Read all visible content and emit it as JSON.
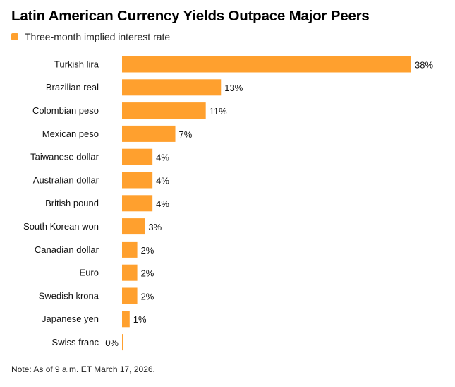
{
  "colors": {
    "bar": "#FFA02E"
  },
  "chart_data": {
    "type": "bar",
    "orientation": "horizontal",
    "title": "Latin American Currency Yields Outpace Major Peers",
    "legend": [
      "Three-month implied interest rate"
    ],
    "categories": [
      "Turkish lira",
      "Brazilian real",
      "Colombian peso",
      "Mexican peso",
      "Taiwanese dollar",
      "Australian dollar",
      "British pound",
      "South Korean won",
      "Canadian dollar",
      "Euro",
      "Swedish krona",
      "Japanese yen",
      "Swiss franc"
    ],
    "values": [
      38,
      13,
      11,
      7,
      4,
      4,
      4,
      3,
      2,
      2,
      2,
      1,
      0
    ],
    "value_labels": [
      "38%",
      "13%",
      "11%",
      "7%",
      "4%",
      "4%",
      "4%",
      "3%",
      "2%",
      "2%",
      "2%",
      "1%",
      "0%"
    ],
    "unit": "%",
    "xlim": [
      0,
      38
    ]
  },
  "note": "Note: As of 9 a.m. ET March 17, 2026."
}
